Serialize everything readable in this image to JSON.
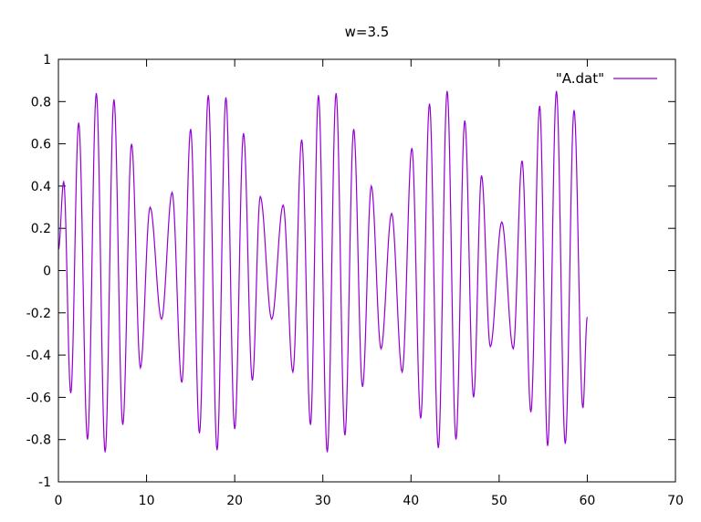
{
  "chart_data": {
    "type": "line",
    "title": "w=3.5",
    "xlabel": "",
    "ylabel": "",
    "xlim": [
      0,
      70
    ],
    "ylim": [
      -1,
      1
    ],
    "x_ticks": [
      0,
      10,
      20,
      30,
      40,
      50,
      60,
      70
    ],
    "y_ticks": [
      -1,
      -0.8,
      -0.6,
      -0.4,
      -0.2,
      0,
      0.2,
      0.4,
      0.6,
      0.8,
      1
    ],
    "x_tick_labels": [
      "0",
      "10",
      "20",
      "30",
      "40",
      "50",
      "60",
      "70"
    ],
    "y_tick_labels": [
      "-1",
      "-0.8",
      "-0.6",
      "-0.4",
      "-0.2",
      "0",
      "0.2",
      "0.4",
      "0.6",
      "0.8",
      "1"
    ],
    "grid": false,
    "legend_position": "top-right",
    "series": [
      {
        "name": "\"A.dat\"",
        "color": "#9400d3",
        "x": [
          0,
          0.6,
          1.4,
          2.3,
          3.3,
          4.3,
          5.3,
          6.3,
          7.3,
          8.3,
          9.3,
          10.4,
          11.7,
          12.9,
          14.0,
          15.0,
          16.0,
          17.0,
          18.0,
          19.0,
          20.0,
          21.0,
          22.0,
          22.9,
          24.2,
          25.5,
          26.6,
          27.6,
          28.6,
          29.5,
          30.5,
          31.5,
          32.5,
          33.5,
          34.5,
          35.5,
          36.6,
          37.8,
          39.0,
          40.1,
          41.1,
          42.1,
          43.1,
          44.1,
          45.1,
          46.1,
          47.1,
          48.0,
          49.0,
          50.3,
          51.6,
          52.6,
          53.6,
          54.6,
          55.5,
          56.5,
          57.5,
          58.5,
          59.5,
          60.0
        ],
        "y": [
          0.1,
          0.42,
          -0.58,
          0.7,
          -0.8,
          0.84,
          -0.86,
          0.81,
          -0.73,
          0.6,
          -0.46,
          0.3,
          -0.23,
          0.37,
          -0.53,
          0.67,
          -0.77,
          0.83,
          -0.85,
          0.82,
          -0.75,
          0.65,
          -0.52,
          0.35,
          -0.23,
          0.31,
          -0.48,
          0.62,
          -0.73,
          0.83,
          -0.86,
          0.84,
          -0.78,
          0.67,
          -0.55,
          0.4,
          -0.37,
          0.27,
          -0.48,
          0.58,
          -0.7,
          0.79,
          -0.84,
          0.85,
          -0.8,
          0.71,
          -0.6,
          0.45,
          -0.36,
          0.23,
          -0.37,
          0.52,
          -0.67,
          0.78,
          -0.83,
          0.85,
          -0.82,
          0.76,
          -0.65,
          -0.22
        ]
      }
    ]
  }
}
